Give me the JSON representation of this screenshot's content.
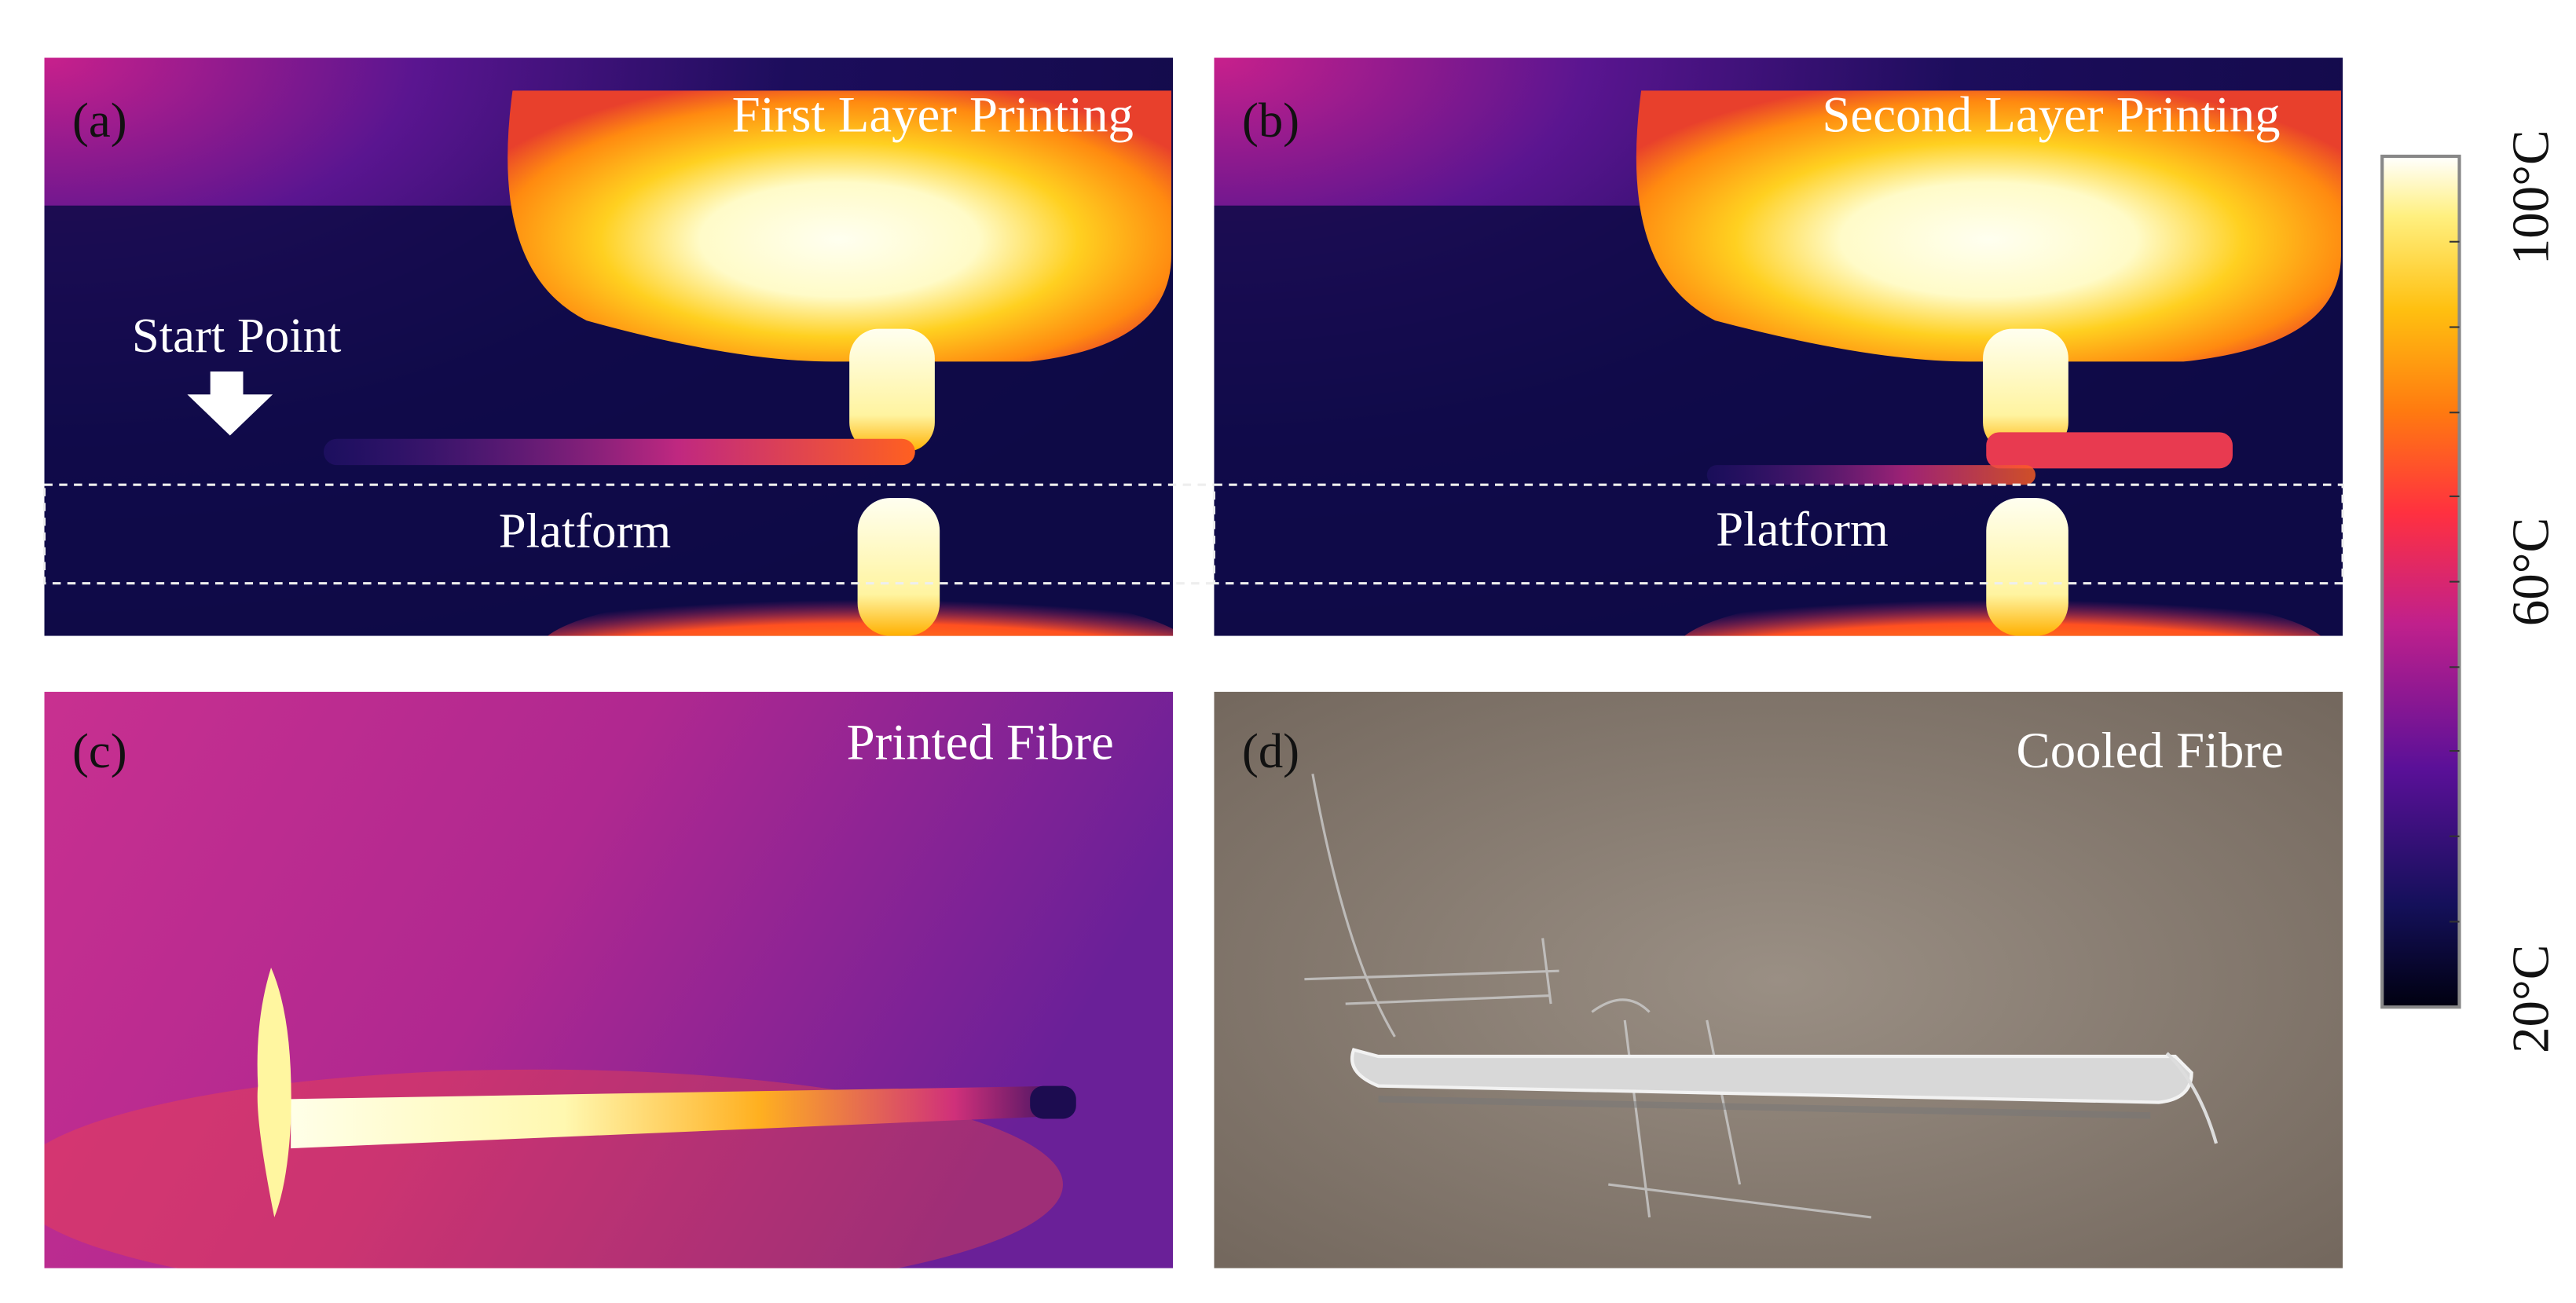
{
  "panels": [
    {
      "label": "(a)",
      "title": "First Layer Printing",
      "annotations": [
        "Start Point",
        "Platform"
      ]
    },
    {
      "label": "(b)",
      "title": "Second Layer Printing",
      "annotations": [
        "Platform"
      ]
    },
    {
      "label": "(c)",
      "title": "Printed Fibre"
    },
    {
      "label": "(d)",
      "title": "Cooled Fibre"
    }
  ],
  "colorbar": {
    "labels": [
      "100°C",
      "60°C",
      "20°C"
    ]
  }
}
